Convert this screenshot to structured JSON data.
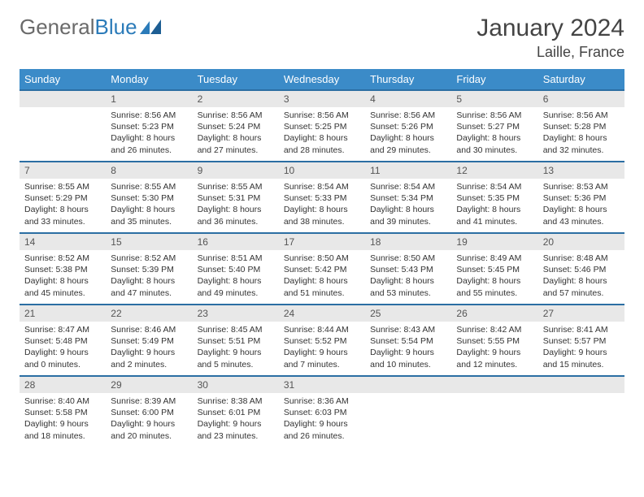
{
  "logo": {
    "part1": "General",
    "part2": "Blue"
  },
  "title": "January 2024",
  "location": "Laille, France",
  "colors": {
    "header_bg": "#3b8bc8",
    "header_text": "#ffffff",
    "daynum_bg": "#e8e8e8",
    "daynum_border": "#2b6ea3",
    "body_text": "#333333",
    "logo_gray": "#6a6a6a",
    "logo_blue": "#2b7bb9"
  },
  "weekdays": [
    "Sunday",
    "Monday",
    "Tuesday",
    "Wednesday",
    "Thursday",
    "Friday",
    "Saturday"
  ],
  "weeks": [
    [
      {
        "n": "",
        "sunrise": "",
        "sunset": "",
        "daylight1": "",
        "daylight2": ""
      },
      {
        "n": "1",
        "sunrise": "Sunrise: 8:56 AM",
        "sunset": "Sunset: 5:23 PM",
        "daylight1": "Daylight: 8 hours",
        "daylight2": "and 26 minutes."
      },
      {
        "n": "2",
        "sunrise": "Sunrise: 8:56 AM",
        "sunset": "Sunset: 5:24 PM",
        "daylight1": "Daylight: 8 hours",
        "daylight2": "and 27 minutes."
      },
      {
        "n": "3",
        "sunrise": "Sunrise: 8:56 AM",
        "sunset": "Sunset: 5:25 PM",
        "daylight1": "Daylight: 8 hours",
        "daylight2": "and 28 minutes."
      },
      {
        "n": "4",
        "sunrise": "Sunrise: 8:56 AM",
        "sunset": "Sunset: 5:26 PM",
        "daylight1": "Daylight: 8 hours",
        "daylight2": "and 29 minutes."
      },
      {
        "n": "5",
        "sunrise": "Sunrise: 8:56 AM",
        "sunset": "Sunset: 5:27 PM",
        "daylight1": "Daylight: 8 hours",
        "daylight2": "and 30 minutes."
      },
      {
        "n": "6",
        "sunrise": "Sunrise: 8:56 AM",
        "sunset": "Sunset: 5:28 PM",
        "daylight1": "Daylight: 8 hours",
        "daylight2": "and 32 minutes."
      }
    ],
    [
      {
        "n": "7",
        "sunrise": "Sunrise: 8:55 AM",
        "sunset": "Sunset: 5:29 PM",
        "daylight1": "Daylight: 8 hours",
        "daylight2": "and 33 minutes."
      },
      {
        "n": "8",
        "sunrise": "Sunrise: 8:55 AM",
        "sunset": "Sunset: 5:30 PM",
        "daylight1": "Daylight: 8 hours",
        "daylight2": "and 35 minutes."
      },
      {
        "n": "9",
        "sunrise": "Sunrise: 8:55 AM",
        "sunset": "Sunset: 5:31 PM",
        "daylight1": "Daylight: 8 hours",
        "daylight2": "and 36 minutes."
      },
      {
        "n": "10",
        "sunrise": "Sunrise: 8:54 AM",
        "sunset": "Sunset: 5:33 PM",
        "daylight1": "Daylight: 8 hours",
        "daylight2": "and 38 minutes."
      },
      {
        "n": "11",
        "sunrise": "Sunrise: 8:54 AM",
        "sunset": "Sunset: 5:34 PM",
        "daylight1": "Daylight: 8 hours",
        "daylight2": "and 39 minutes."
      },
      {
        "n": "12",
        "sunrise": "Sunrise: 8:54 AM",
        "sunset": "Sunset: 5:35 PM",
        "daylight1": "Daylight: 8 hours",
        "daylight2": "and 41 minutes."
      },
      {
        "n": "13",
        "sunrise": "Sunrise: 8:53 AM",
        "sunset": "Sunset: 5:36 PM",
        "daylight1": "Daylight: 8 hours",
        "daylight2": "and 43 minutes."
      }
    ],
    [
      {
        "n": "14",
        "sunrise": "Sunrise: 8:52 AM",
        "sunset": "Sunset: 5:38 PM",
        "daylight1": "Daylight: 8 hours",
        "daylight2": "and 45 minutes."
      },
      {
        "n": "15",
        "sunrise": "Sunrise: 8:52 AM",
        "sunset": "Sunset: 5:39 PM",
        "daylight1": "Daylight: 8 hours",
        "daylight2": "and 47 minutes."
      },
      {
        "n": "16",
        "sunrise": "Sunrise: 8:51 AM",
        "sunset": "Sunset: 5:40 PM",
        "daylight1": "Daylight: 8 hours",
        "daylight2": "and 49 minutes."
      },
      {
        "n": "17",
        "sunrise": "Sunrise: 8:50 AM",
        "sunset": "Sunset: 5:42 PM",
        "daylight1": "Daylight: 8 hours",
        "daylight2": "and 51 minutes."
      },
      {
        "n": "18",
        "sunrise": "Sunrise: 8:50 AM",
        "sunset": "Sunset: 5:43 PM",
        "daylight1": "Daylight: 8 hours",
        "daylight2": "and 53 minutes."
      },
      {
        "n": "19",
        "sunrise": "Sunrise: 8:49 AM",
        "sunset": "Sunset: 5:45 PM",
        "daylight1": "Daylight: 8 hours",
        "daylight2": "and 55 minutes."
      },
      {
        "n": "20",
        "sunrise": "Sunrise: 8:48 AM",
        "sunset": "Sunset: 5:46 PM",
        "daylight1": "Daylight: 8 hours",
        "daylight2": "and 57 minutes."
      }
    ],
    [
      {
        "n": "21",
        "sunrise": "Sunrise: 8:47 AM",
        "sunset": "Sunset: 5:48 PM",
        "daylight1": "Daylight: 9 hours",
        "daylight2": "and 0 minutes."
      },
      {
        "n": "22",
        "sunrise": "Sunrise: 8:46 AM",
        "sunset": "Sunset: 5:49 PM",
        "daylight1": "Daylight: 9 hours",
        "daylight2": "and 2 minutes."
      },
      {
        "n": "23",
        "sunrise": "Sunrise: 8:45 AM",
        "sunset": "Sunset: 5:51 PM",
        "daylight1": "Daylight: 9 hours",
        "daylight2": "and 5 minutes."
      },
      {
        "n": "24",
        "sunrise": "Sunrise: 8:44 AM",
        "sunset": "Sunset: 5:52 PM",
        "daylight1": "Daylight: 9 hours",
        "daylight2": "and 7 minutes."
      },
      {
        "n": "25",
        "sunrise": "Sunrise: 8:43 AM",
        "sunset": "Sunset: 5:54 PM",
        "daylight1": "Daylight: 9 hours",
        "daylight2": "and 10 minutes."
      },
      {
        "n": "26",
        "sunrise": "Sunrise: 8:42 AM",
        "sunset": "Sunset: 5:55 PM",
        "daylight1": "Daylight: 9 hours",
        "daylight2": "and 12 minutes."
      },
      {
        "n": "27",
        "sunrise": "Sunrise: 8:41 AM",
        "sunset": "Sunset: 5:57 PM",
        "daylight1": "Daylight: 9 hours",
        "daylight2": "and 15 minutes."
      }
    ],
    [
      {
        "n": "28",
        "sunrise": "Sunrise: 8:40 AM",
        "sunset": "Sunset: 5:58 PM",
        "daylight1": "Daylight: 9 hours",
        "daylight2": "and 18 minutes."
      },
      {
        "n": "29",
        "sunrise": "Sunrise: 8:39 AM",
        "sunset": "Sunset: 6:00 PM",
        "daylight1": "Daylight: 9 hours",
        "daylight2": "and 20 minutes."
      },
      {
        "n": "30",
        "sunrise": "Sunrise: 8:38 AM",
        "sunset": "Sunset: 6:01 PM",
        "daylight1": "Daylight: 9 hours",
        "daylight2": "and 23 minutes."
      },
      {
        "n": "31",
        "sunrise": "Sunrise: 8:36 AM",
        "sunset": "Sunset: 6:03 PM",
        "daylight1": "Daylight: 9 hours",
        "daylight2": "and 26 minutes."
      },
      {
        "n": "",
        "sunrise": "",
        "sunset": "",
        "daylight1": "",
        "daylight2": ""
      },
      {
        "n": "",
        "sunrise": "",
        "sunset": "",
        "daylight1": "",
        "daylight2": ""
      },
      {
        "n": "",
        "sunrise": "",
        "sunset": "",
        "daylight1": "",
        "daylight2": ""
      }
    ]
  ]
}
